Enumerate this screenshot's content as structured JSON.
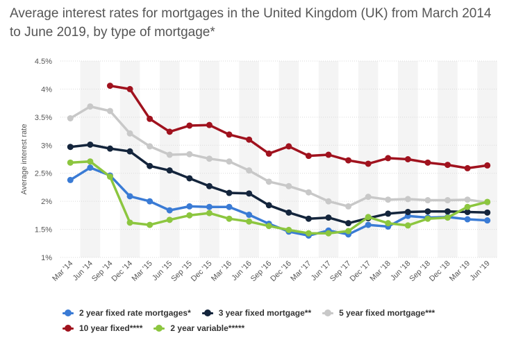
{
  "title": "Average interest rates for mortgages in the United Kingdom (UK) from March 2014 to June 2019, by type of mortgage*",
  "chart_data": {
    "type": "line",
    "categories": [
      "Mar '14",
      "Jun '14",
      "Sep '14",
      "Dec '14",
      "Mar '15",
      "Jun '15",
      "Sep '15",
      "Dec '15",
      "Mar '16",
      "Jun '16",
      "Sep '16",
      "Dec '16",
      "Mar '17",
      "Jun '17",
      "Sep '17",
      "Dec '17",
      "Mar '18",
      "Jun '18",
      "Sep '18",
      "Dec '18",
      "Mar '19",
      "Jun '19"
    ],
    "ylabel": "Average interest rate",
    "ylim": [
      1,
      4.5
    ],
    "yticks": [
      "1%",
      "1.5%",
      "2%",
      "2.5%",
      "3%",
      "3.5%",
      "4%",
      "4.5%"
    ],
    "grid": true,
    "legend_position": "bottom",
    "series": [
      {
        "name": "2 year fixed rate mortgages*",
        "color": "#3a7bd5",
        "values": [
          2.38,
          2.6,
          2.46,
          2.09,
          2.0,
          1.84,
          1.91,
          1.9,
          1.9,
          1.76,
          1.6,
          1.46,
          1.39,
          1.48,
          1.41,
          1.58,
          1.55,
          1.74,
          1.71,
          1.72,
          1.68,
          1.66
        ]
      },
      {
        "name": "3 year fixed mortgage**",
        "color": "#14253c",
        "values": [
          2.97,
          3.01,
          2.94,
          2.89,
          2.63,
          2.55,
          2.41,
          2.27,
          2.15,
          2.14,
          1.93,
          1.8,
          1.69,
          1.71,
          1.61,
          1.7,
          1.78,
          1.81,
          1.82,
          1.82,
          1.81,
          1.8
        ]
      },
      {
        "name": "5 year fixed mortgage***",
        "color": "#c8c8c8",
        "values": [
          3.48,
          3.69,
          3.61,
          3.21,
          2.98,
          2.83,
          2.84,
          2.76,
          2.71,
          2.55,
          2.35,
          2.27,
          2.16,
          2.0,
          1.91,
          2.08,
          2.03,
          2.04,
          2.02,
          2.02,
          2.03,
          1.98
        ]
      },
      {
        "name": "10 year fixed****",
        "color": "#a0121e",
        "values": [
          null,
          null,
          4.06,
          4.0,
          3.47,
          3.24,
          3.35,
          3.36,
          3.19,
          3.1,
          2.85,
          2.98,
          2.81,
          2.83,
          2.73,
          2.67,
          2.77,
          2.75,
          2.69,
          2.65,
          2.59,
          2.64
        ]
      },
      {
        "name": "2 year variable*****",
        "color": "#8cc63f",
        "values": [
          2.69,
          2.71,
          2.44,
          1.62,
          1.58,
          1.67,
          1.75,
          1.79,
          1.69,
          1.64,
          1.56,
          1.49,
          1.43,
          1.43,
          1.47,
          1.72,
          1.61,
          1.57,
          1.69,
          1.71,
          1.9,
          1.99
        ]
      }
    ]
  }
}
